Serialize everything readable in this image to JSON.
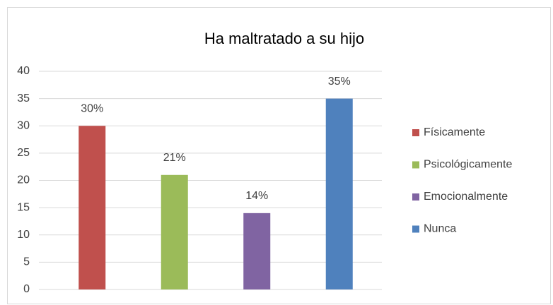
{
  "chart_data": {
    "type": "bar",
    "title": "Ha maltratado a su hijo",
    "categories": [
      null
    ],
    "series": [
      {
        "name": "Físicamente",
        "color": "#c0504d",
        "values": [
          30
        ],
        "value_labels": [
          "30%"
        ]
      },
      {
        "name": "Psicológicamente",
        "color": "#9bbb59",
        "values": [
          21
        ],
        "value_labels": [
          "21%"
        ]
      },
      {
        "name": "Emocionalmente",
        "color": "#8064a2",
        "values": [
          14
        ],
        "value_labels": [
          "14%"
        ]
      },
      {
        "name": "Nunca",
        "color": "#4f81bd",
        "values": [
          35
        ],
        "value_labels": [
          "35%"
        ]
      }
    ],
    "ylim": [
      0,
      40
    ],
    "yticks": [
      0,
      5,
      10,
      15,
      20,
      25,
      30,
      35,
      40
    ],
    "grid": true,
    "legend": "right"
  }
}
